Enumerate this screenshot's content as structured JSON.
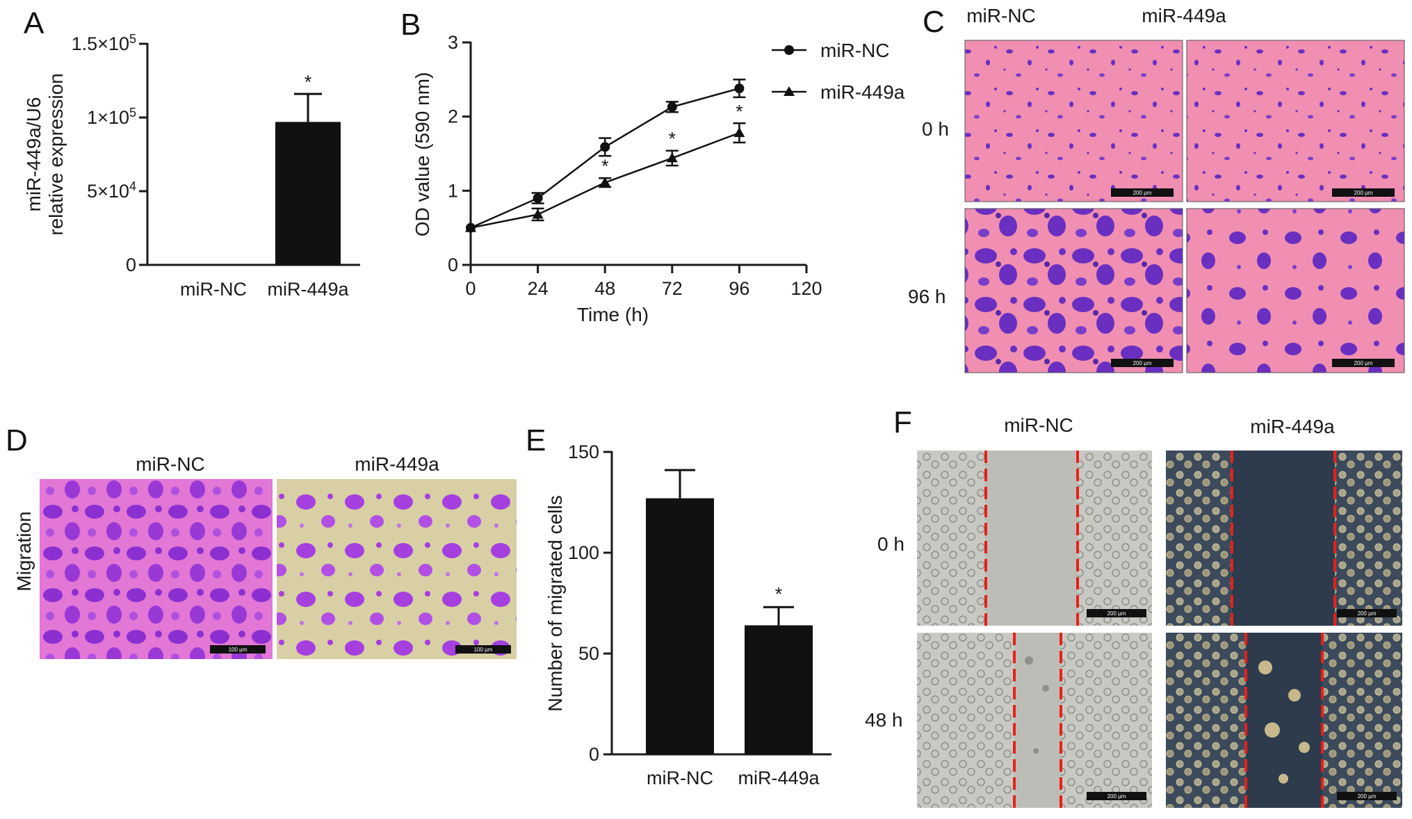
{
  "panels": {
    "A": "A",
    "B": "B",
    "C": "C",
    "D": "D",
    "E": "E",
    "F": "F"
  },
  "colors": {
    "bar": "#111111",
    "crystal_violet_bg": "#f08fb2",
    "crystal_violet_cells": "#6a2fc0",
    "migration_cells": "#a13cd8",
    "wound_line": "#e8201a"
  },
  "panel_c": {
    "columns": [
      "miR-NC",
      "miR-449a"
    ],
    "rows": [
      "0 h",
      "96 h"
    ],
    "scale_bar": "200 µm"
  },
  "panel_d": {
    "row_label": "Migration",
    "columns": [
      "miR-NC",
      "miR-449a"
    ],
    "scale_bar": "100 µm"
  },
  "panel_f": {
    "columns": [
      "miR-NC",
      "miR-449a"
    ],
    "rows": [
      "0 h",
      "48 h"
    ],
    "scale_bar": "200 µm"
  },
  "chart_data": [
    {
      "panel": "A",
      "type": "bar",
      "ylabel_lines": [
        "miR-449a/U6",
        "relative expression"
      ],
      "categories": [
        "miR-NC",
        "miR-449a"
      ],
      "values": [
        1,
        97000
      ],
      "errors": [
        0,
        19000
      ],
      "ylim": [
        0,
        150000
      ],
      "yticks": [
        {
          "v": 0,
          "b": "0",
          "e": ""
        },
        {
          "v": 50000,
          "b": "5×10",
          "e": "4"
        },
        {
          "v": 100000,
          "b": "1×10",
          "e": "5"
        },
        {
          "v": 150000,
          "b": "1.5×10",
          "e": "5"
        }
      ],
      "significance": [
        "",
        "*"
      ]
    },
    {
      "panel": "B",
      "type": "line",
      "xlabel": "Time (h)",
      "ylabel": "OD value (590 nm)",
      "xlim": [
        0,
        120
      ],
      "ylim": [
        0,
        3
      ],
      "xticks": [
        0,
        24,
        48,
        72,
        96,
        120
      ],
      "yticks": [
        0,
        1,
        2,
        3
      ],
      "legend_position": "top-right",
      "series": [
        {
          "name": "miR-NC",
          "marker": "circle",
          "x": [
            0,
            24,
            48,
            72,
            96
          ],
          "y": [
            0.5,
            0.9,
            1.59,
            2.13,
            2.38
          ],
          "err": [
            0.02,
            0.07,
            0.12,
            0.07,
            0.12
          ],
          "significance": [
            "",
            "",
            "",
            "",
            ""
          ]
        },
        {
          "name": "miR-449a",
          "marker": "triangle",
          "x": [
            0,
            24,
            48,
            72,
            96
          ],
          "y": [
            0.5,
            0.68,
            1.11,
            1.44,
            1.78
          ],
          "err": [
            0.02,
            0.08,
            0.06,
            0.1,
            0.13
          ],
          "significance": [
            "",
            "",
            "*",
            "*",
            "*"
          ]
        }
      ]
    },
    {
      "panel": "E",
      "type": "bar",
      "ylabel": "Number of migrated cells",
      "categories": [
        "miR-NC",
        "miR-449a"
      ],
      "values": [
        127,
        64
      ],
      "errors": [
        14,
        9
      ],
      "ylim": [
        0,
        150
      ],
      "yticks": [
        0,
        50,
        100,
        150
      ],
      "significance": [
        "",
        "*"
      ]
    }
  ]
}
